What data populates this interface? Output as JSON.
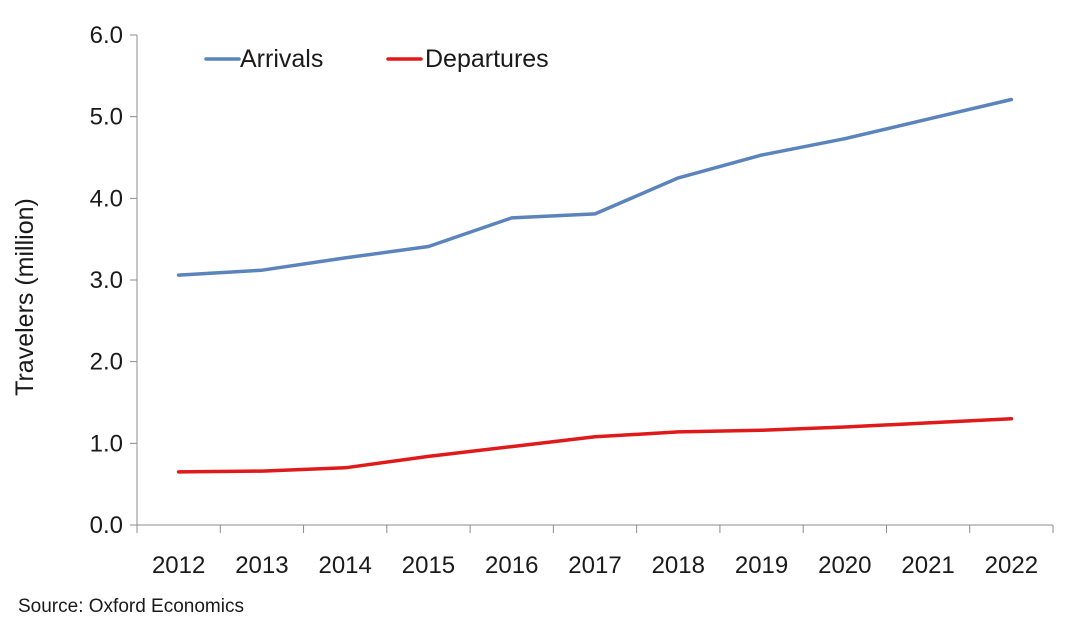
{
  "chart_data": {
    "type": "line",
    "x": [
      "2012",
      "2013",
      "2014",
      "2015",
      "2016",
      "2017",
      "2018",
      "2019",
      "2020",
      "2021",
      "2022"
    ],
    "series": [
      {
        "name": "Arrivals",
        "color": "#5b84bd",
        "values": [
          3.06,
          3.12,
          3.27,
          3.41,
          3.76,
          3.81,
          4.25,
          4.53,
          4.73,
          4.97,
          5.21
        ]
      },
      {
        "name": "Departures",
        "color": "#e01a1a",
        "values": [
          0.65,
          0.66,
          0.7,
          0.84,
          0.96,
          1.08,
          1.14,
          1.16,
          1.2,
          1.25,
          1.3
        ]
      }
    ],
    "ylabel": "Travelers (million)",
    "xlabel": "",
    "ylim": [
      0,
      6
    ],
    "yticks": [
      "0.0",
      "1.0",
      "2.0",
      "3.0",
      "4.0",
      "5.0",
      "6.0"
    ],
    "grid": false,
    "legend_position": "top-left"
  },
  "source": "Source:  Oxford Economics"
}
